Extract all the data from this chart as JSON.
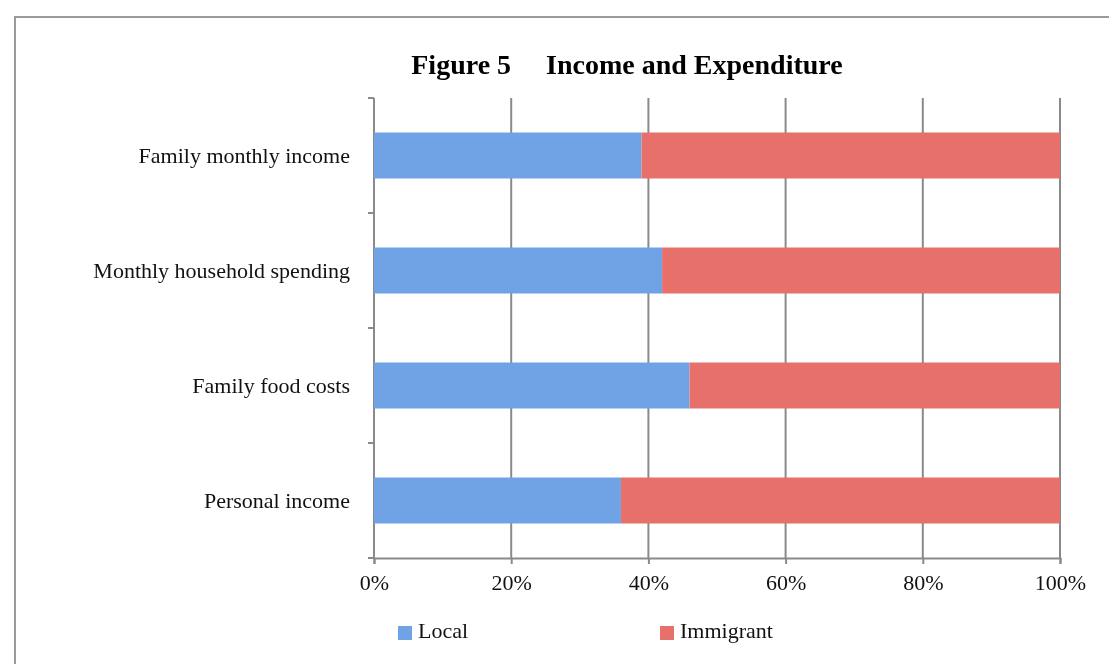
{
  "chart_data": {
    "type": "bar",
    "title": "Figure 5     Income and Expenditure",
    "orientation": "horizontal",
    "stacked": true,
    "categories": [
      "Family monthly income",
      "Monthly household spending",
      "Family food costs",
      "Personal income"
    ],
    "series": [
      {
        "name": "Local",
        "color": "#6fa3e6",
        "values": [
          39,
          42,
          46,
          36
        ]
      },
      {
        "name": "Immigrant",
        "color": "#e8706a",
        "values": [
          61,
          58,
          54,
          64
        ]
      }
    ],
    "xlim": [
      0,
      100
    ],
    "xticks": [
      {
        "value": 0,
        "label": "0%"
      },
      {
        "value": 20,
        "label": "20%"
      },
      {
        "value": 40,
        "label": "40%"
      },
      {
        "value": 60,
        "label": "60%"
      },
      {
        "value": 80,
        "label": "80%"
      },
      {
        "value": 100,
        "label": "100%"
      }
    ],
    "grid": "x",
    "legend": "bottom"
  }
}
